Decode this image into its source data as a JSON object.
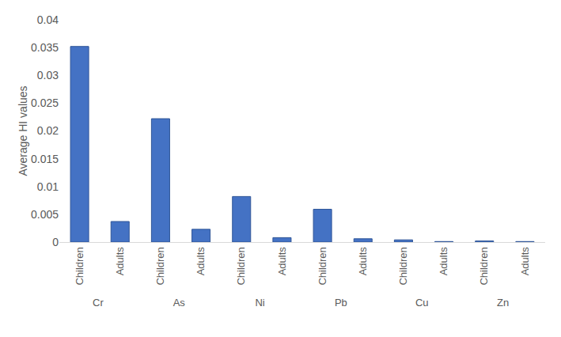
{
  "chart_data": {
    "type": "bar",
    "y_label": "Average HI values",
    "categories": [
      [
        "Cr",
        "Children"
      ],
      [
        "Cr",
        "Adults"
      ],
      [
        "As",
        "Children"
      ],
      [
        "As",
        "Adults"
      ],
      [
        "Ni",
        "Children"
      ],
      [
        "Ni",
        "Adults"
      ],
      [
        "Pb",
        "Children"
      ],
      [
        "Pb",
        "Adults"
      ],
      [
        "Cu",
        "Children"
      ],
      [
        "Cu",
        "Adults"
      ],
      [
        "Zn",
        "Children"
      ],
      [
        "Zn",
        "Adults"
      ]
    ],
    "values": [
      0.0352,
      0.0037,
      0.0222,
      0.0023,
      0.0082,
      0.0008,
      0.0059,
      0.0006,
      0.0004,
      0.0001,
      0.0002,
      0.0001
    ],
    "color": "#4472c4",
    "ylim": [
      0,
      0.04
    ],
    "yticks": [
      0,
      0.005,
      0.01,
      0.015,
      0.02,
      0.025,
      0.03,
      0.035,
      0.04
    ],
    "grid": false
  }
}
